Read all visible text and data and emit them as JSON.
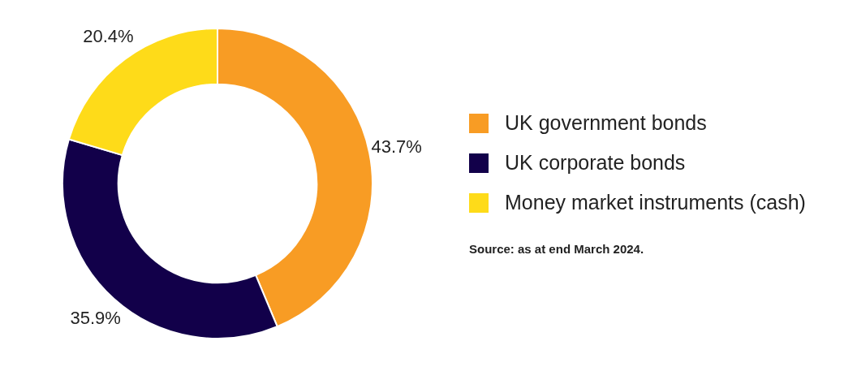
{
  "chart_data": {
    "type": "donut",
    "categories": [
      "UK government bonds",
      "UK corporate bonds",
      "Money market instruments (cash)"
    ],
    "values": [
      43.7,
      35.9,
      20.4
    ],
    "value_labels": [
      "43.7%",
      "35.9%",
      "20.4%"
    ],
    "colors": [
      "#f89c24",
      "#12004a",
      "#fedb19"
    ],
    "legend": "right",
    "annotations": [
      "Source: as at end March 2024."
    ]
  }
}
